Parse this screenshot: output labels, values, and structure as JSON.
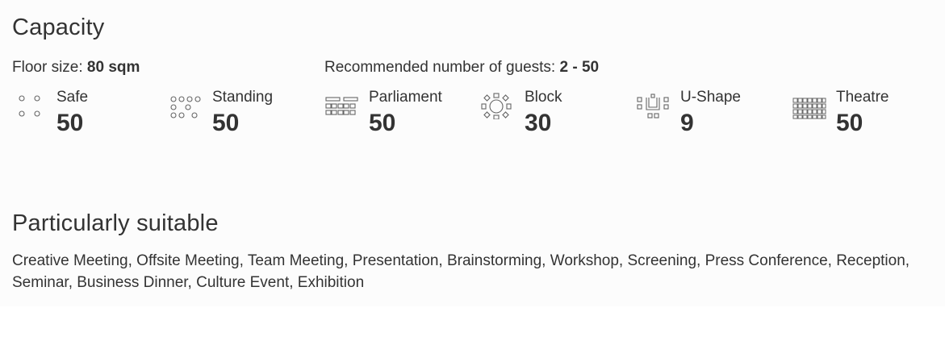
{
  "capacity": {
    "title": "Capacity",
    "floor_label": "Floor size:",
    "floor_value": "80 sqm",
    "guests_label": "Recommended number of guests:",
    "guests_value": "2 - 50",
    "setups": [
      {
        "label": "Safe",
        "value": "50",
        "icon": "safe-seating-icon"
      },
      {
        "label": "Standing",
        "value": "50",
        "icon": "standing-seating-icon"
      },
      {
        "label": "Parliament",
        "value": "50",
        "icon": "parliament-seating-icon"
      },
      {
        "label": "Block",
        "value": "30",
        "icon": "block-seating-icon"
      },
      {
        "label": "U-Shape",
        "value": "9",
        "icon": "u-shape-seating-icon"
      },
      {
        "label": "Theatre",
        "value": "50",
        "icon": "theatre-seating-icon"
      }
    ]
  },
  "suitable": {
    "title": "Particularly suitable",
    "text": "Creative Meeting, Offsite Meeting, Team Meeting, Presentation, Brainstorming, Workshop, Screening, Press Conference, Reception, Seminar, Business Dinner, Culture Event, Exhibition"
  }
}
